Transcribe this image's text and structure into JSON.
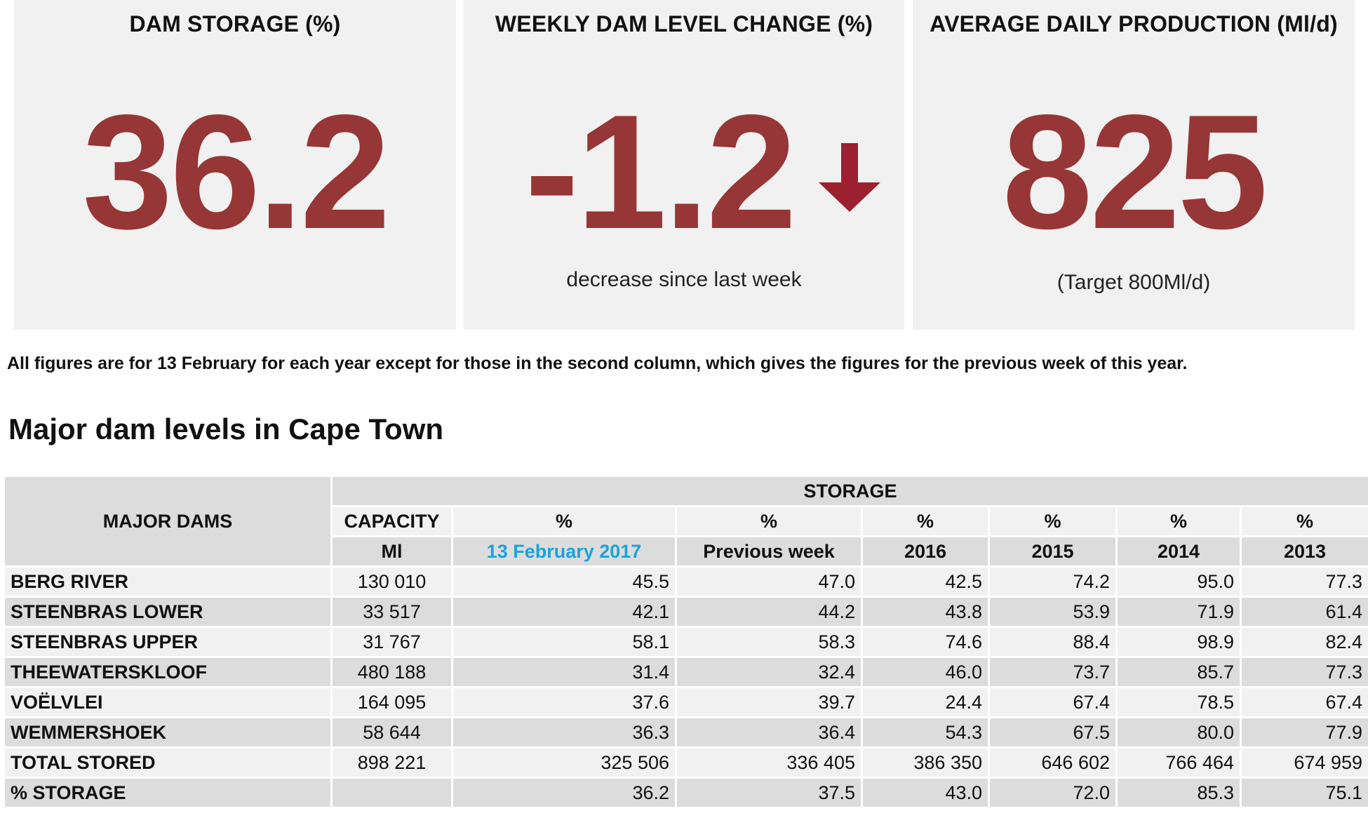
{
  "cards": [
    {
      "title": "DAM STORAGE (%)",
      "value": "36.2",
      "subtitle": ""
    },
    {
      "title": "WEEKLY DAM LEVEL CHANGE (%)",
      "value": "-1.2",
      "subtitle": "decrease since last week",
      "icon": "arrow-down-icon"
    },
    {
      "title": "AVERAGE DAILY PRODUCTION (Ml/d)",
      "value": "825",
      "subtitle": "(Target 800Ml/d)"
    }
  ],
  "colors": {
    "value": "#963636",
    "arrow": "#9b2130",
    "date_accent": "#1aa3dc",
    "card_bg": "#f1f1f1",
    "row_dark": "#dcdcdc"
  },
  "note": "All figures are for 13 February for each year except for those in the second column, which gives the figures for the previous week of this year.",
  "heading": "Major dam levels in Cape Town",
  "table": {
    "major_dams_label": "MAJOR DAMS",
    "storage_label": "STORAGE",
    "columns": [
      {
        "top": "CAPACITY",
        "bottom": "Ml"
      },
      {
        "top": "%",
        "bottom": "13 February 2017"
      },
      {
        "top": "%",
        "bottom": "Previous week"
      },
      {
        "top": "%",
        "bottom": "2016"
      },
      {
        "top": "%",
        "bottom": "2015"
      },
      {
        "top": "%",
        "bottom": "2014"
      },
      {
        "top": "%",
        "bottom": "2013"
      }
    ],
    "rows": [
      {
        "name": "BERG RIVER",
        "cells": [
          "130 010",
          "45.5",
          "47.0",
          "42.5",
          "74.2",
          "95.0",
          "77.3"
        ]
      },
      {
        "name": "STEENBRAS LOWER",
        "cells": [
          "33 517",
          "42.1",
          "44.2",
          "43.8",
          "53.9",
          "71.9",
          "61.4"
        ]
      },
      {
        "name": "STEENBRAS UPPER",
        "cells": [
          "31 767",
          "58.1",
          "58.3",
          "74.6",
          "88.4",
          "98.9",
          "82.4"
        ]
      },
      {
        "name": "THEEWATERSKLOOF",
        "cells": [
          "480 188",
          "31.4",
          "32.4",
          "46.0",
          "73.7",
          "85.7",
          "77.3"
        ]
      },
      {
        "name": "VOËLVLEI",
        "cells": [
          "164 095",
          "37.6",
          "39.7",
          "24.4",
          "67.4",
          "78.5",
          "67.4"
        ]
      },
      {
        "name": "WEMMERSHOEK",
        "cells": [
          "58 644",
          "36.3",
          "36.4",
          "54.3",
          "67.5",
          "80.0",
          "77.9"
        ]
      },
      {
        "name": "TOTAL STORED",
        "cells": [
          "898 221",
          "325 506",
          "336 405",
          "386 350",
          "646 602",
          "766 464",
          "674 959"
        ]
      },
      {
        "name": "% STORAGE",
        "cells": [
          "",
          "36.2",
          "37.5",
          "43.0",
          "72.0",
          "85.3",
          "75.1"
        ]
      }
    ]
  }
}
